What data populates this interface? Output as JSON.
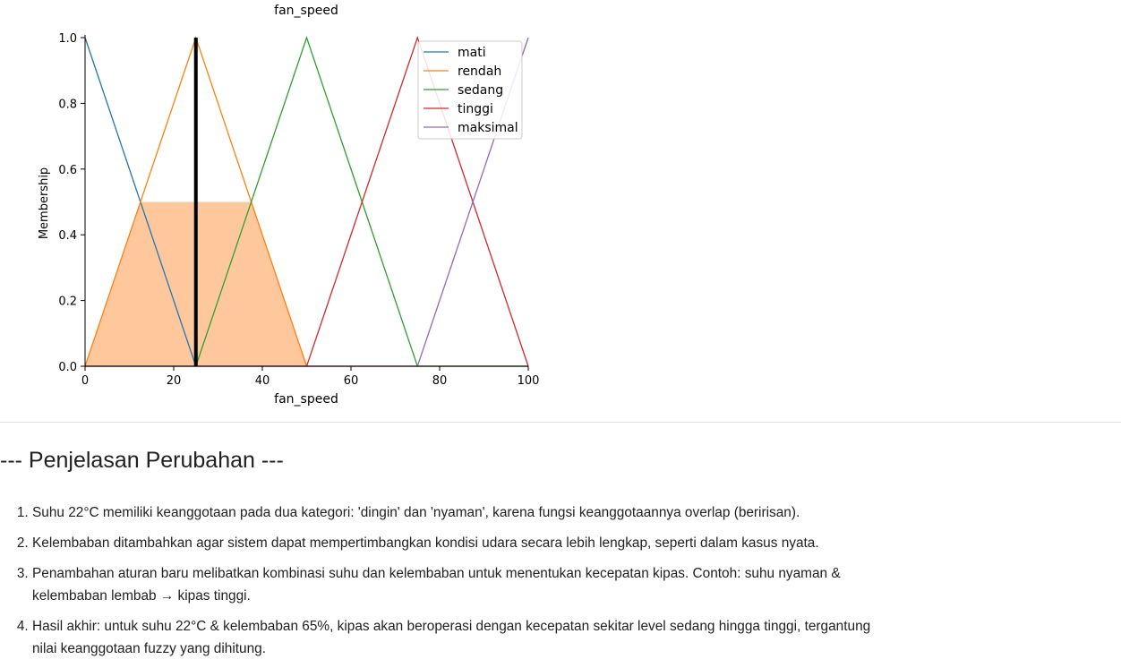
{
  "chart_data": {
    "type": "line",
    "title": "fan_speed",
    "xlabel": "fan_speed",
    "ylabel": "Membership",
    "xlim": [
      0,
      100
    ],
    "ylim": [
      0,
      1
    ],
    "xticks": [
      0,
      20,
      40,
      60,
      80,
      100
    ],
    "yticks": [
      0.0,
      0.2,
      0.4,
      0.6,
      0.8,
      1.0
    ],
    "grid": false,
    "legend_position": "top-right",
    "series": [
      {
        "name": "mati",
        "color": "#1f77b4",
        "x": [
          0,
          0,
          25,
          100
        ],
        "y": [
          1,
          1,
          0,
          0
        ]
      },
      {
        "name": "rendah",
        "color": "#ff7f0e",
        "x": [
          0,
          25,
          50,
          100
        ],
        "y": [
          0,
          1,
          0,
          0
        ]
      },
      {
        "name": "sedang",
        "color": "#2ca02c",
        "x": [
          0,
          25,
          50,
          75,
          100
        ],
        "y": [
          0,
          0,
          1,
          0,
          0
        ]
      },
      {
        "name": "tinggi",
        "color": "#d62728",
        "x": [
          0,
          50,
          75,
          100
        ],
        "y": [
          0,
          0,
          1,
          0
        ]
      },
      {
        "name": "maksimal",
        "color": "#9467bd",
        "x": [
          0,
          75,
          100,
          100
        ],
        "y": [
          0,
          0,
          1,
          1
        ]
      }
    ],
    "activation_area": {
      "color": "#ffc89c",
      "x": [
        0,
        12.5,
        37.5,
        50
      ],
      "y": [
        0,
        0.5,
        0.5,
        0
      ]
    },
    "crisp_output": {
      "x": 25,
      "y": 1,
      "color": "#000000"
    },
    "xtick_labels": [
      "0",
      "20",
      "40",
      "60",
      "80",
      "100"
    ],
    "ytick_labels": [
      "0.0",
      "0.2",
      "0.4",
      "0.6",
      "0.8",
      "1.0"
    ]
  },
  "explanation": {
    "title": "--- Penjelasan Perubahan ---",
    "items": [
      "Suhu 22°C memiliki keanggotaan pada dua kategori: 'dingin' dan 'nyaman', karena fungsi keanggotaannya overlap (beririsan).",
      "Kelembaban ditambahkan agar sistem dapat mempertimbangkan kondisi udara secara lebih lengkap, seperti dalam kasus nyata.",
      "Penambahan aturan baru melibatkan kombinasi suhu dan kelembaban untuk menentukan kecepatan kipas. Contoh: suhu nyaman & kelembaban lembab → kipas tinggi.",
      "Hasil akhir: untuk suhu 22°C & kelembaban 65%, kipas akan beroperasi dengan kecepatan sekitar level sedang hingga tinggi, tergantung nilai keanggotaan fuzzy yang dihitung."
    ]
  }
}
